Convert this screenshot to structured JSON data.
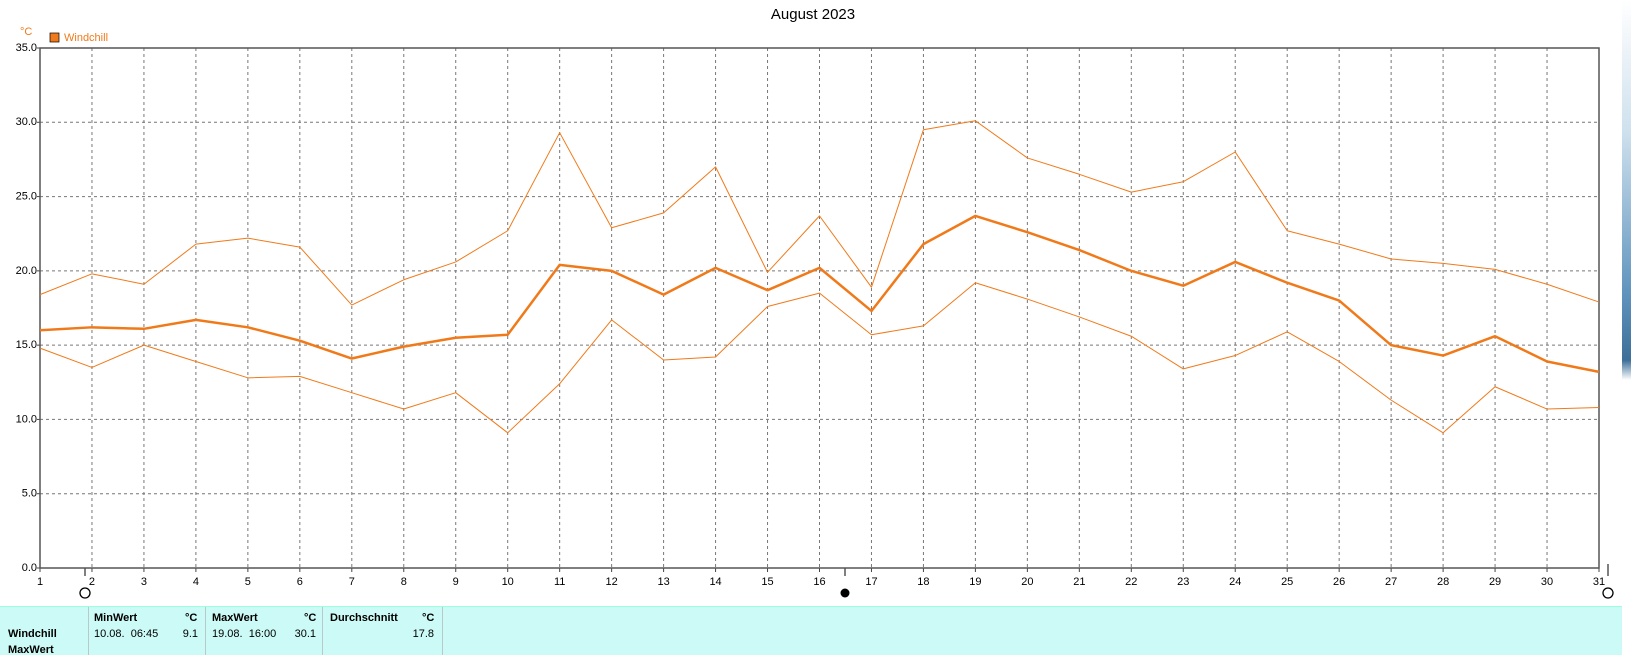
{
  "chart_data": {
    "type": "line",
    "title": "August 2023",
    "y_unit": "°C",
    "legend": "Windchill",
    "x": [
      1,
      2,
      3,
      4,
      5,
      6,
      7,
      8,
      9,
      10,
      11,
      12,
      13,
      14,
      15,
      16,
      17,
      18,
      19,
      20,
      21,
      22,
      23,
      24,
      25,
      26,
      27,
      28,
      29,
      30,
      31
    ],
    "xlim": [
      1,
      31
    ],
    "xticks": [
      1,
      2,
      3,
      4,
      5,
      6,
      7,
      8,
      9,
      10,
      11,
      12,
      13,
      14,
      15,
      16,
      17,
      18,
      19,
      20,
      21,
      22,
      23,
      24,
      25,
      26,
      27,
      28,
      29,
      30,
      31
    ],
    "ylim": [
      0,
      35
    ],
    "yticks": [
      {
        "value": 0,
        "label": "0.0"
      },
      {
        "value": 5,
        "label": "5.0"
      },
      {
        "value": 10,
        "label": "10.0"
      },
      {
        "value": 15,
        "label": "15.0"
      },
      {
        "value": 20,
        "label": "20.0"
      },
      {
        "value": 25,
        "label": "25.0"
      },
      {
        "value": 30,
        "label": "30.0"
      },
      {
        "value": 35,
        "label": "35.0"
      }
    ],
    "grid": true,
    "series": [
      {
        "color": "#f07a1a",
        "width": 1,
        "values": [
          18.4,
          19.8,
          19.1,
          21.8,
          22.2,
          21.6,
          17.7,
          19.4,
          20.6,
          22.7,
          29.3,
          22.9,
          23.9,
          27.0,
          19.9,
          23.7,
          18.9,
          29.5,
          30.1,
          27.6,
          26.5,
          25.3,
          26.0,
          28.0,
          22.7,
          21.8,
          20.8,
          20.5,
          20.1,
          19.1,
          17.9
        ]
      },
      {
        "color": "#f07a1a",
        "width": 2.5,
        "values": [
          16.0,
          16.2,
          16.1,
          16.7,
          16.2,
          15.3,
          14.1,
          14.9,
          15.5,
          15.7,
          20.4,
          20.0,
          18.4,
          20.2,
          18.7,
          20.2,
          17.3,
          21.8,
          23.7,
          22.6,
          21.4,
          20.0,
          19.0,
          20.6,
          19.2,
          18.0,
          15.0,
          14.3,
          15.6,
          13.9,
          13.2
        ]
      },
      {
        "color": "#f07a1a",
        "width": 1,
        "values": [
          14.8,
          13.5,
          15.0,
          13.9,
          12.8,
          12.9,
          11.8,
          10.7,
          11.8,
          9.1,
          12.4,
          16.7,
          14.0,
          14.2,
          17.6,
          18.5,
          15.7,
          16.3,
          19.2,
          18.1,
          16.9,
          15.6,
          13.4,
          14.3,
          15.9,
          13.9,
          11.3,
          9.1,
          12.2,
          10.7,
          10.8
        ]
      }
    ]
  },
  "table": {
    "columns": [
      {
        "title": "MinWert",
        "unit": "°C"
      },
      {
        "title": "MaxWert",
        "unit": "°C"
      },
      {
        "title": "Durchschnitt",
        "unit": "°C"
      }
    ],
    "rows": [
      {
        "label": "Windchill",
        "cells": [
          "10.08.  06:45",
          "9.1",
          "19.08.  16:00",
          "30.1",
          "17.8"
        ]
      },
      {
        "label": "MaxWert"
      }
    ]
  }
}
